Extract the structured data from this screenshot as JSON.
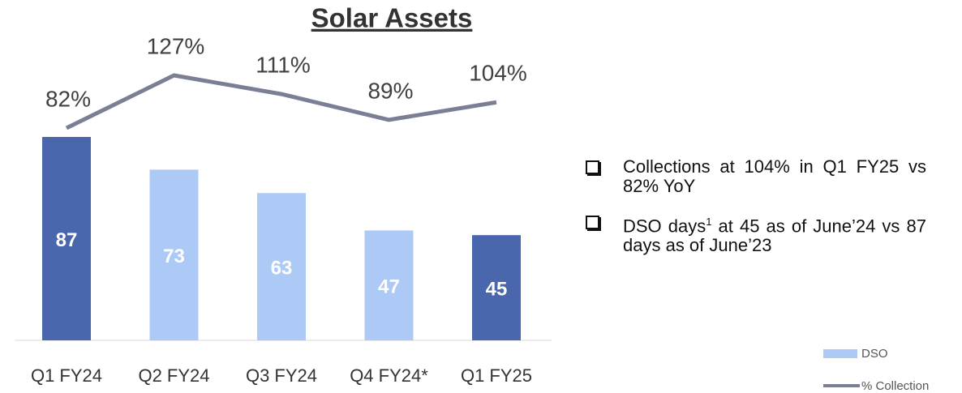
{
  "chart_data": {
    "type": "bar",
    "title": "Solar Assets",
    "categories": [
      "Q1 FY24",
      "Q2 FY24",
      "Q3 FY24",
      "Q4 FY24*",
      "Q1 FY25"
    ],
    "series": [
      {
        "name": "DSO",
        "type": "bar",
        "color": "#adc9f5",
        "colors": [
          "#4a66ad",
          "#adc9f5",
          "#adc9f5",
          "#adc9f5",
          "#4a66ad"
        ],
        "values": [
          87,
          73,
          63,
          47,
          45
        ]
      },
      {
        "name": "% Collection",
        "type": "line",
        "axis": "y2",
        "color": "#7b7f96",
        "values": [
          82,
          127,
          111,
          89,
          104
        ],
        "value_labels": [
          "82%",
          "127%",
          "111%",
          "89%",
          "104%"
        ]
      }
    ]
  },
  "notes": [
    {
      "text": "Collections at 104% in Q1 FY25 vs 82% YoY"
    },
    {
      "text": "DSO days",
      "sup": "1",
      "text2": " at 45 as of June’24 vs 87 days as of June’23"
    }
  ]
}
